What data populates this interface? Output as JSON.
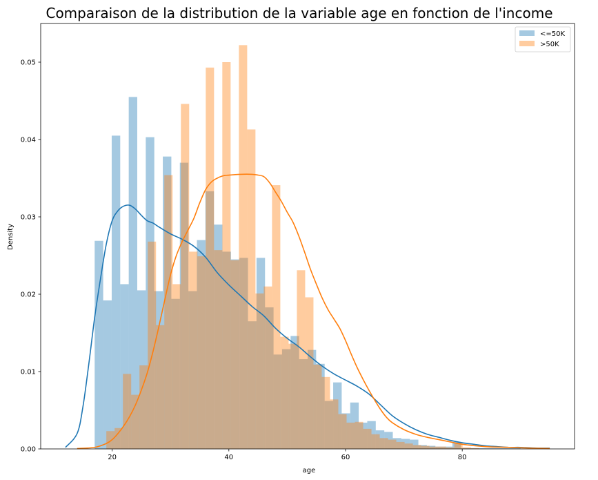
{
  "chart_data": {
    "type": "histogram",
    "title": "Comparaison de la distribution de la variable age en fonction de l'income",
    "xlabel": "age",
    "ylabel": "Density",
    "xlim": [
      7.75,
      99.25
    ],
    "ylim": [
      0,
      0.055
    ],
    "xticks": [
      20,
      40,
      60,
      80
    ],
    "xtick_labels": [
      "20",
      "40",
      "60",
      "80"
    ],
    "yticks": [
      0,
      0.01,
      0.02,
      0.03,
      0.04,
      0.05
    ],
    "ytick_labels": [
      "0.00",
      "0.01",
      "0.02",
      "0.03",
      "0.04",
      "0.05"
    ],
    "legend": {
      "placement": "top-right"
    },
    "series": [
      {
        "name": "<=50K",
        "color": "#1f77b4",
        "bin_start": 17,
        "bin_width": 1.46,
        "values": [
          0.0269,
          0.0192,
          0.0405,
          0.0213,
          0.0455,
          0.0205,
          0.0403,
          0.0204,
          0.0378,
          0.0194,
          0.037,
          0.0204,
          0.027,
          0.0333,
          0.029,
          0.0255,
          0.0245,
          0.0247,
          0.0165,
          0.0247,
          0.0183,
          0.0122,
          0.0129,
          0.0146,
          0.0116,
          0.0128,
          0.011,
          0.0062,
          0.0086,
          0.0046,
          0.006,
          0.0034,
          0.0036,
          0.0024,
          0.0022,
          0.0014,
          0.0013,
          0.0012,
          0.0005,
          0.0004,
          0.0003,
          0.0003,
          0.0009,
          0.0001,
          0.0001,
          0.0001,
          0.0001,
          0.0001,
          0.0001,
          0.0001
        ],
        "kde": {
          "x": [
            12,
            14,
            15,
            16,
            17,
            18,
            19,
            20,
            21,
            22,
            23,
            24,
            25,
            26,
            27,
            28,
            30,
            32,
            34,
            36,
            38,
            40,
            42,
            44,
            46,
            48,
            50,
            52,
            54,
            56,
            58,
            60,
            62,
            64,
            66,
            68,
            70,
            72,
            74,
            76,
            78,
            80,
            82,
            84,
            86,
            88,
            90,
            93,
            95
          ],
          "y": [
            0.0002,
            0.002,
            0.0055,
            0.011,
            0.017,
            0.022,
            0.0265,
            0.0295,
            0.0308,
            0.0314,
            0.0315,
            0.031,
            0.0302,
            0.0295,
            0.0292,
            0.0287,
            0.0278,
            0.0271,
            0.0262,
            0.0248,
            0.0228,
            0.0212,
            0.0198,
            0.0184,
            0.0172,
            0.0156,
            0.0143,
            0.0132,
            0.0119,
            0.0107,
            0.0097,
            0.0089,
            0.0081,
            0.0071,
            0.0057,
            0.0043,
            0.0033,
            0.0025,
            0.0019,
            0.0015,
            0.0011,
            0.0008,
            0.0006,
            0.0004,
            0.0003,
            0.0002,
            0.0002,
            0.0001,
            0.0001
          ]
        }
      },
      {
        "name": ">50K",
        "color": "#ff7f0e",
        "bin_start": 19,
        "bin_width": 1.42,
        "values": [
          0.0023,
          0.0027,
          0.0097,
          0.007,
          0.0108,
          0.0268,
          0.016,
          0.0354,
          0.0213,
          0.0446,
          0.0255,
          0.0249,
          0.0493,
          0.0257,
          0.05,
          0.0244,
          0.0522,
          0.0413,
          0.0201,
          0.021,
          0.0341,
          0.0145,
          0.0136,
          0.0231,
          0.0196,
          0.0109,
          0.0093,
          0.0064,
          0.0045,
          0.0034,
          0.0035,
          0.0026,
          0.0019,
          0.0014,
          0.0012,
          0.0009,
          0.0007,
          0.0005,
          0.0004,
          0.0003,
          0.0003,
          0.0002,
          0.0008,
          0.0002,
          0.0001
        ],
        "kde": {
          "x": [
            14,
            17,
            19,
            20,
            21,
            22,
            23,
            24,
            25,
            26,
            27,
            28,
            29,
            30,
            31,
            32,
            33,
            34,
            35,
            36,
            37,
            38,
            39,
            40,
            42,
            44,
            45,
            46,
            47,
            48,
            49,
            50,
            51,
            52,
            53,
            54,
            55,
            56,
            57,
            58,
            59,
            60,
            61,
            62,
            63,
            64,
            65,
            66,
            67,
            68,
            70,
            72,
            74,
            76,
            78,
            80,
            84,
            88,
            92,
            95
          ],
          "y": [
            5e-05,
            0.0002,
            0.0007,
            0.0012,
            0.002,
            0.003,
            0.0042,
            0.0057,
            0.0076,
            0.0098,
            0.0126,
            0.0158,
            0.0192,
            0.0225,
            0.025,
            0.0268,
            0.0283,
            0.0298,
            0.0318,
            0.0335,
            0.0345,
            0.035,
            0.0353,
            0.0354,
            0.0355,
            0.0355,
            0.0354,
            0.0352,
            0.0344,
            0.0332,
            0.032,
            0.0306,
            0.0293,
            0.0275,
            0.0254,
            0.0232,
            0.0213,
            0.0195,
            0.018,
            0.0168,
            0.0156,
            0.014,
            0.0122,
            0.0105,
            0.009,
            0.0076,
            0.0063,
            0.0051,
            0.0041,
            0.0034,
            0.0025,
            0.0019,
            0.0015,
            0.0012,
            0.0009,
            0.0006,
            0.0003,
            0.0002,
            0.0001,
            5e-05
          ]
        }
      }
    ]
  }
}
